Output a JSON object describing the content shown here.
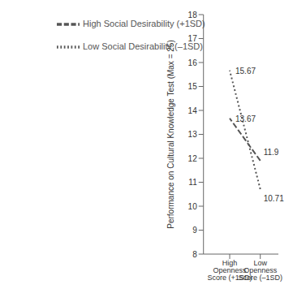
{
  "chart_data": {
    "type": "line",
    "categories": [
      "Low Openness Score (–1SD)",
      "High Openness Score (+1SD)"
    ],
    "series": [
      {
        "name": "Low Social Desirability (–1SD)",
        "color": "#555555",
        "line_style": "dotted",
        "values": [
          10.71,
          15.67
        ]
      },
      {
        "name": "High Social Desirability (+1SD)",
        "color": "#555555",
        "line_style": "dashed",
        "values": [
          11.9,
          13.67
        ]
      }
    ],
    "ylabel": "Performance on Cultural Knowledge Test (Max = 25)",
    "ylim": [
      8,
      18
    ],
    "yticks": [
      8,
      9,
      10,
      11,
      12,
      13,
      14,
      15,
      16,
      17,
      18
    ],
    "legend": "upper left",
    "data_labels": true,
    "grid": false
  }
}
